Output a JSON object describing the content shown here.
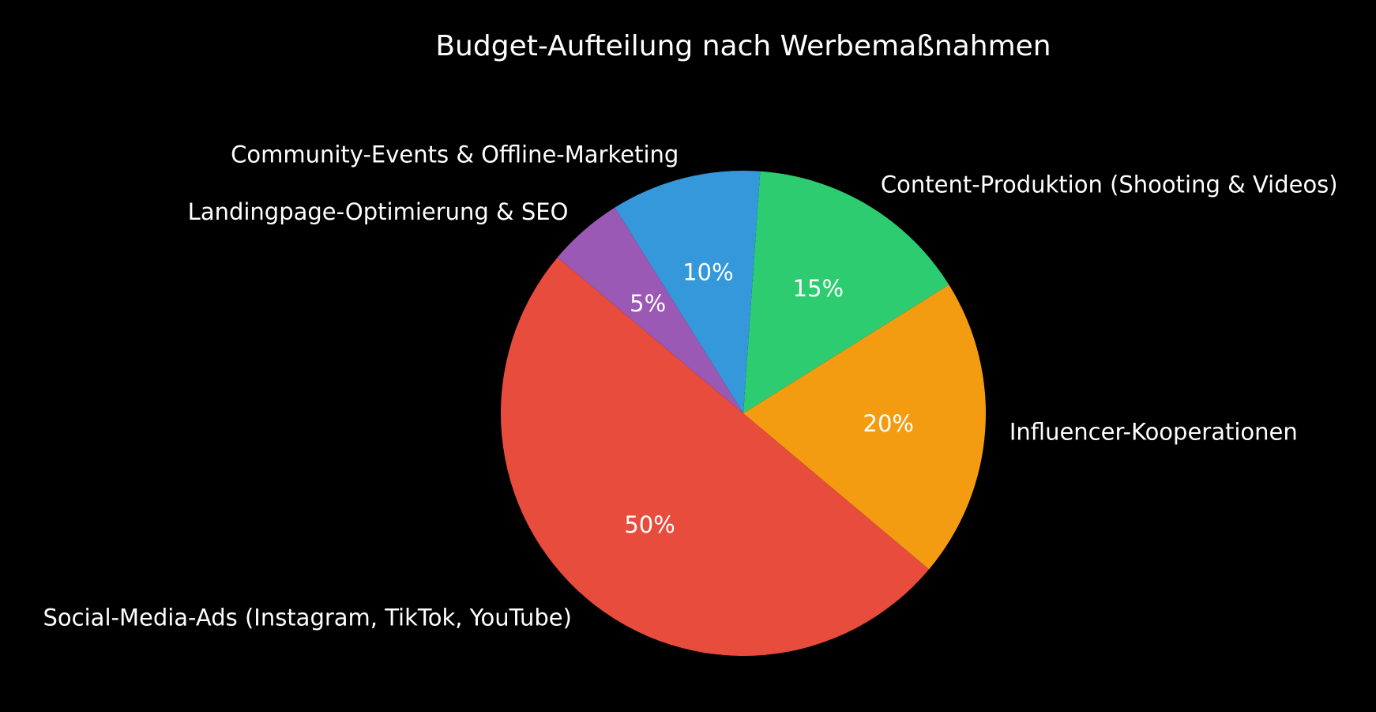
{
  "chart_data": {
    "type": "pie",
    "title": "Budget-Aufteilung nach Werbemaßnahmen",
    "slices": [
      {
        "label": "Social-Media-Ads (Instagram, TikTok, YouTube)",
        "value": 50,
        "pct_label": "50%",
        "color": "#e74c3c"
      },
      {
        "label": "Influencer-Kooperationen",
        "value": 20,
        "pct_label": "20%",
        "color": "#f39c12"
      },
      {
        "label": "Content-Produktion (Shooting & Videos)",
        "value": 15,
        "pct_label": "15%",
        "color": "#2ecc71"
      },
      {
        "label": "Community-Events & Offline-Marketing",
        "value": 10,
        "pct_label": "10%",
        "color": "#3498db"
      },
      {
        "label": "Landingpage-Optimierung & SEO",
        "value": 5,
        "pct_label": "5%",
        "color": "#9b59b6"
      }
    ],
    "start_angle_deg": 140,
    "direction": "counterclockwise",
    "legend": "none",
    "background": "#000000",
    "text_color": "#ffffff"
  }
}
